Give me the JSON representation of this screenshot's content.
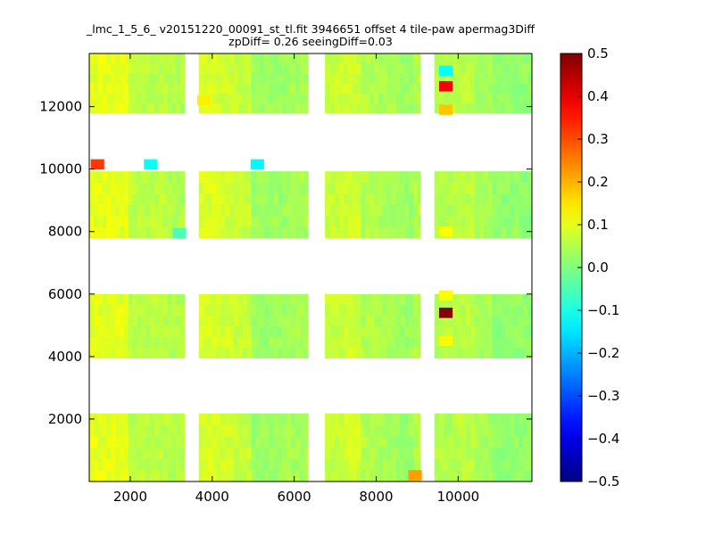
{
  "chart_data": {
    "type": "heatmap",
    "title_line1": "_lmc_1_5_6_ v20151220_00091_st_tl.fit 3946651 offset 4 tile-paw apermag3Diff",
    "title_line2": "zpDiff= 0.26 seeingDiff=0.03",
    "xlabel": "",
    "ylabel": "",
    "xlim": [
      1000,
      11800
    ],
    "ylim": [
      0,
      13700
    ],
    "x_ticks": [
      2000,
      4000,
      6000,
      8000,
      10000
    ],
    "y_ticks": [
      2000,
      4000,
      6000,
      8000,
      10000,
      12000
    ],
    "colorbar": {
      "colormap": "jet",
      "range": [
        -0.5,
        0.5
      ],
      "ticks": [
        0.5,
        0.4,
        0.3,
        0.2,
        0.1,
        0.0,
        -0.1,
        -0.2,
        -0.3,
        -0.4,
        -0.5
      ],
      "tick_labels": [
        "0.5",
        "0.4",
        "0.3",
        "0.2",
        "0.1",
        "0.0",
        "−0.1",
        "−0.2",
        "−0.3",
        "−0.4",
        "−0.5"
      ]
    },
    "grid": false,
    "column_blocks": [
      {
        "x0": 1000,
        "x1": 3330,
        "base": [
          0.1,
          0.1,
          0.06,
          0.06,
          0.05
        ]
      },
      {
        "x0": 3670,
        "x1": 6670,
        "base": [
          0.09,
          0.08,
          0.07,
          0.03,
          0.03,
          0.04,
          0.04
        ]
      },
      {
        "x0": 6670,
        "x1": 9330,
        "base": [
          0.07,
          0.08,
          0.05,
          0.04,
          0.03,
          0.05
        ]
      },
      {
        "x0": 9330,
        "x1": 11800,
        "base": [
          0.05,
          0.06,
          0.04,
          0.02,
          0.02
        ]
      }
    ],
    "row_blocks": [
      {
        "y0": 0,
        "y1": 2180
      },
      {
        "y0": 3950,
        "y1": 6000
      },
      {
        "y0": 7800,
        "y1": 9930
      },
      {
        "y0": 11800,
        "y1": 13700
      }
    ],
    "highlight_cells": [
      {
        "x": 9700,
        "y": 13150,
        "value": -0.12
      },
      {
        "x": 9700,
        "y": 12650,
        "value": 0.38
      },
      {
        "x": 9700,
        "y": 11900,
        "value": 0.18
      },
      {
        "x": 1200,
        "y": 10150,
        "value": 0.32
      },
      {
        "x": 2500,
        "y": 10150,
        "value": -0.12
      },
      {
        "x": 5100,
        "y": 10150,
        "value": -0.13
      },
      {
        "x": 9700,
        "y": 5400,
        "value": 0.5
      },
      {
        "x": 8950,
        "y": 200,
        "value": 0.22
      },
      {
        "x": 3800,
        "y": 12200,
        "value": 0.14
      },
      {
        "x": 3200,
        "y": 7950,
        "value": -0.05
      },
      {
        "x": 9700,
        "y": 5950,
        "value": 0.12
      },
      {
        "x": 9700,
        "y": 4500,
        "value": 0.13
      },
      {
        "x": 9700,
        "y": 8000,
        "value": 0.12
      }
    ]
  }
}
